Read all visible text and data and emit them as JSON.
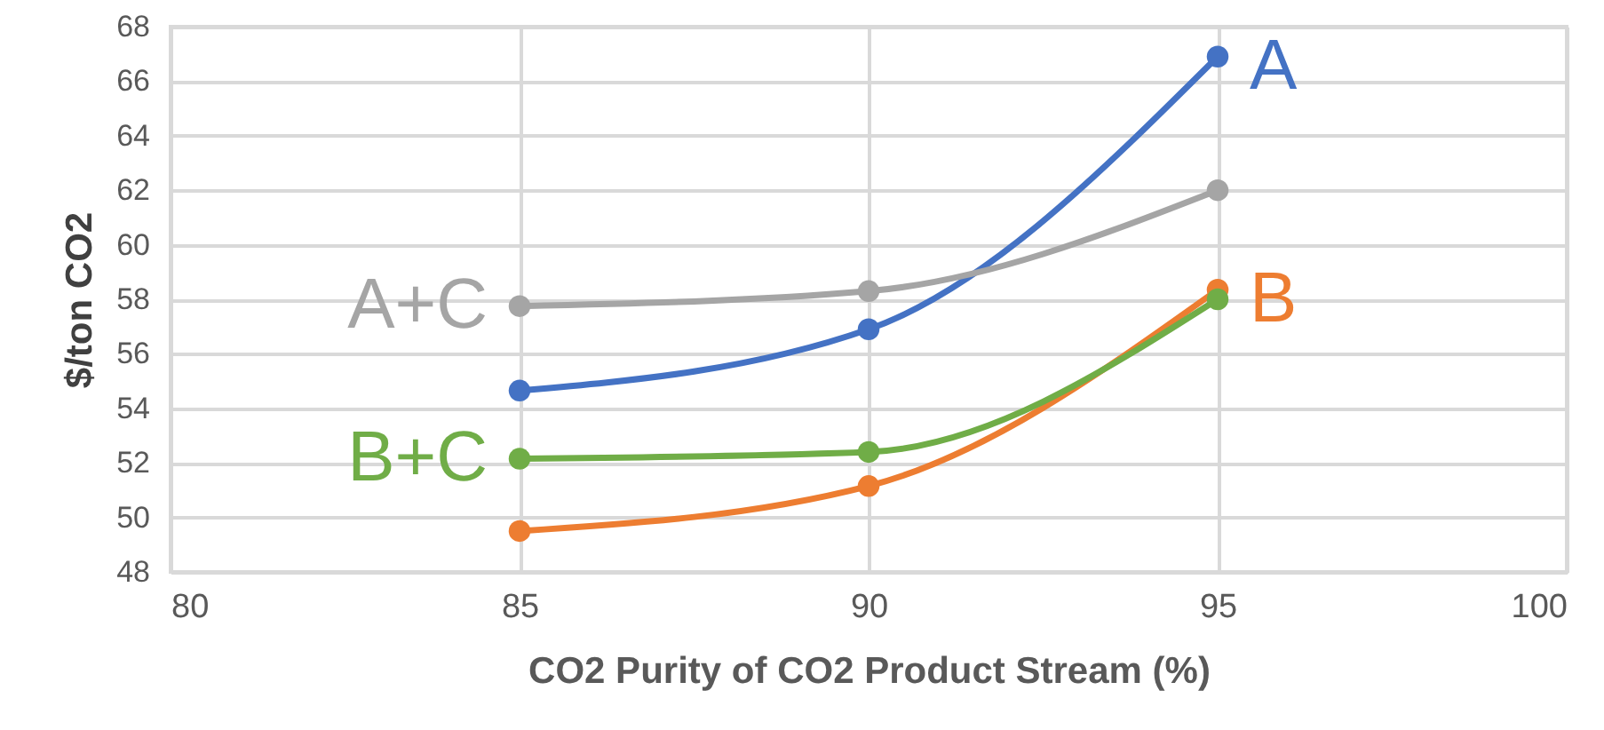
{
  "chart_data": {
    "type": "line",
    "xlabel": "CO2 Purity of CO2 Product Stream (%)",
    "ylabel": "$/ton CO2",
    "x": [
      85,
      90,
      95
    ],
    "series": [
      {
        "name": "A",
        "color": "#4472c4",
        "values": [
          54.65,
          56.9,
          66.9
        ]
      },
      {
        "name": "B",
        "color": "#ed7d31",
        "values": [
          49.5,
          51.15,
          58.35
        ]
      },
      {
        "name": "A+C",
        "color": "#a5a5a5",
        "values": [
          57.75,
          58.3,
          62.0
        ]
      },
      {
        "name": "B+C",
        "color": "#70ad47",
        "values": [
          52.15,
          52.4,
          58.0
        ]
      }
    ],
    "xlim": [
      80,
      100
    ],
    "xticks": [
      80,
      85,
      90,
      95,
      100
    ],
    "ylim": [
      48,
      68
    ],
    "yticks": [
      48,
      50,
      52,
      54,
      56,
      58,
      60,
      62,
      64,
      66,
      68
    ],
    "grid": true,
    "marker": "circle",
    "line_style": "solid"
  }
}
